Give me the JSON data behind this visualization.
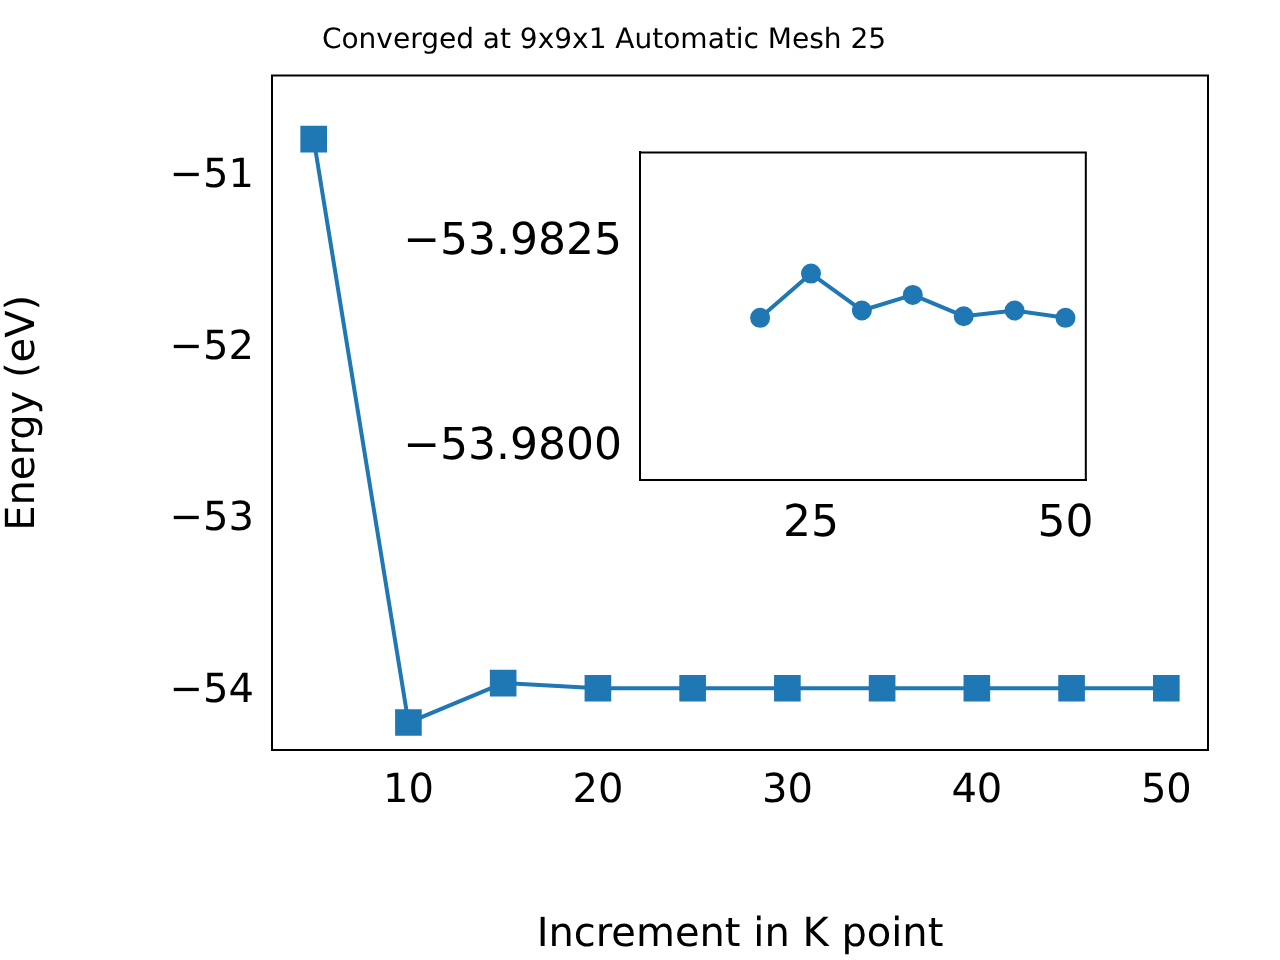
{
  "chart_data": [
    {
      "type": "line",
      "title": "Converged at 9x9x1 Automatic Mesh 25",
      "xlabel": "Increment in K point",
      "ylabel": "Energy (eV)",
      "x": [
        5,
        10,
        15,
        20,
        25,
        30,
        35,
        40,
        45,
        50
      ],
      "series": [
        {
          "color": "#1f77b4",
          "values": [
            -50.78,
            -54.18,
            -53.95,
            -53.98,
            -53.98,
            -53.98,
            -53.98,
            -53.98,
            -53.98,
            -53.98
          ]
        }
      ],
      "xlim": [
        2.8,
        52.2
      ],
      "xticks": [
        10,
        20,
        30,
        40,
        50
      ],
      "ylim": [
        -54.34,
        -50.41
      ],
      "yticks": [
        {
          "value": -54,
          "label": "−54"
        },
        {
          "value": -53,
          "label": "−53"
        },
        {
          "value": -52,
          "label": "−52"
        },
        {
          "value": -51,
          "label": "−51"
        }
      ],
      "marker": "square",
      "grid": false,
      "legend": false
    },
    {
      "type": "line",
      "x": [
        20,
        25,
        30,
        35,
        40,
        45,
        50
      ],
      "series": [
        {
          "color": "#1f77b4",
          "values": [
            -53.98158,
            -53.98212,
            -53.98167,
            -53.98186,
            -53.9816,
            -53.98167,
            -53.98158
          ]
        }
      ],
      "xlim": [
        8.2,
        52
      ],
      "xticks": [
        25,
        50
      ],
      "ylim": [
        -53.9796,
        -53.9836
      ],
      "yticks": [
        {
          "value": -53.98,
          "label": "−53.9800"
        },
        {
          "value": -53.9825,
          "label": "−53.9825"
        }
      ],
      "marker": "circle",
      "grid": false,
      "legend": false
    }
  ]
}
